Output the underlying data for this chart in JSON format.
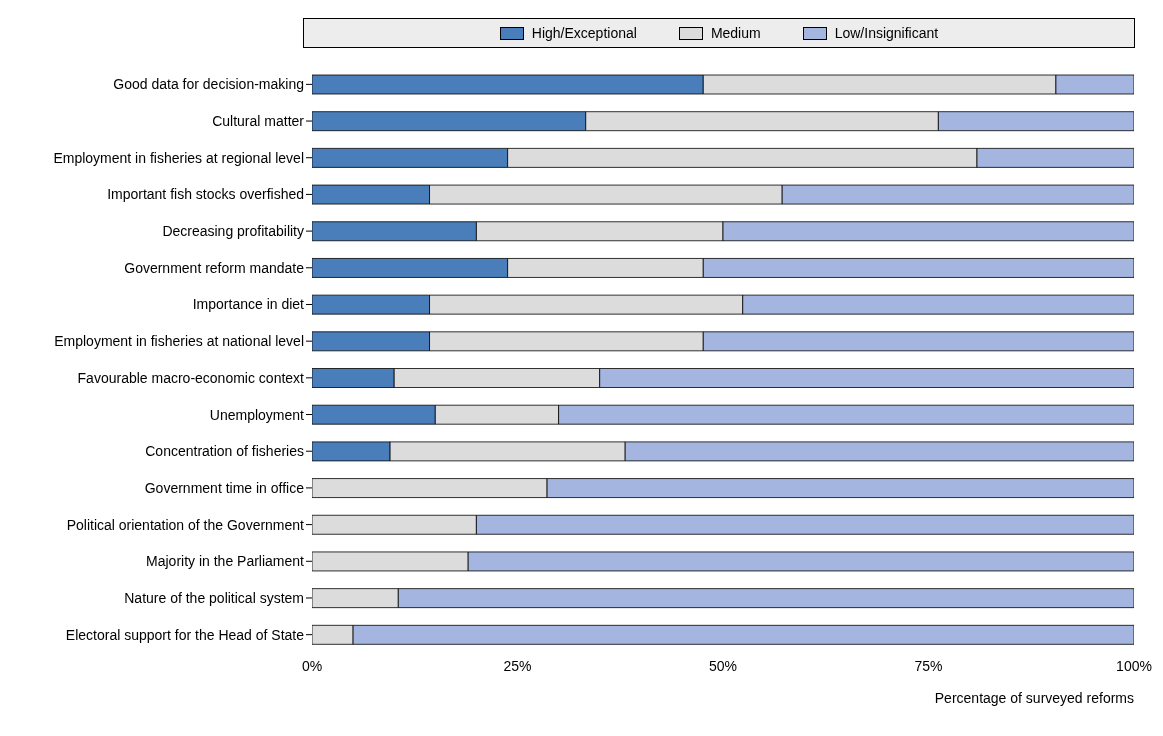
{
  "chart_data": {
    "type": "bar",
    "orientation": "horizontal",
    "stacked": true,
    "xlabel": "Percentage of surveyed reforms",
    "categories": [
      "Good data for decision-making",
      "Cultural matter",
      "Employment in fisheries at regional level",
      "Important fish stocks overfished",
      "Decreasing profitability",
      "Government reform mandate",
      "Importance in diet",
      "Employment in fisheries at national level",
      "Favourable macro-economic context",
      "Unemployment",
      "Concentration of fisheries",
      "Government time in office",
      "Political orientation of the Government",
      "Majority in the Parliament",
      "Nature of the political system",
      "Electoral support for the Head of State"
    ],
    "series": [
      {
        "name": "High/Exceptional",
        "color": "#4a7ebb",
        "values": [
          47.6,
          33.3,
          23.8,
          14.3,
          20,
          23.8,
          14.3,
          14.3,
          10,
          15,
          9.5,
          0,
          0,
          0,
          0,
          0
        ]
      },
      {
        "name": "Medium",
        "color": "#dcdcdc",
        "values": [
          42.9,
          42.9,
          57.1,
          42.9,
          30,
          23.8,
          38.1,
          33.3,
          25,
          15,
          28.6,
          28.6,
          20,
          19,
          10.5,
          5
        ]
      },
      {
        "name": "Low/Insignificant",
        "color": "#a4b5e0",
        "values": [
          9.5,
          23.8,
          19.1,
          42.8,
          50,
          52.4,
          47.6,
          52.4,
          65,
          70,
          61.9,
          71.4,
          80,
          81,
          89.5,
          95
        ]
      }
    ],
    "xlim": [
      0,
      100
    ],
    "xticks": [
      {
        "value": 0,
        "label": "0%"
      },
      {
        "value": 25,
        "label": "25%"
      },
      {
        "value": 50,
        "label": "50%"
      },
      {
        "value": 75,
        "label": "75%"
      },
      {
        "value": 100,
        "label": "100%"
      }
    ],
    "legend": "top",
    "grid": false
  }
}
